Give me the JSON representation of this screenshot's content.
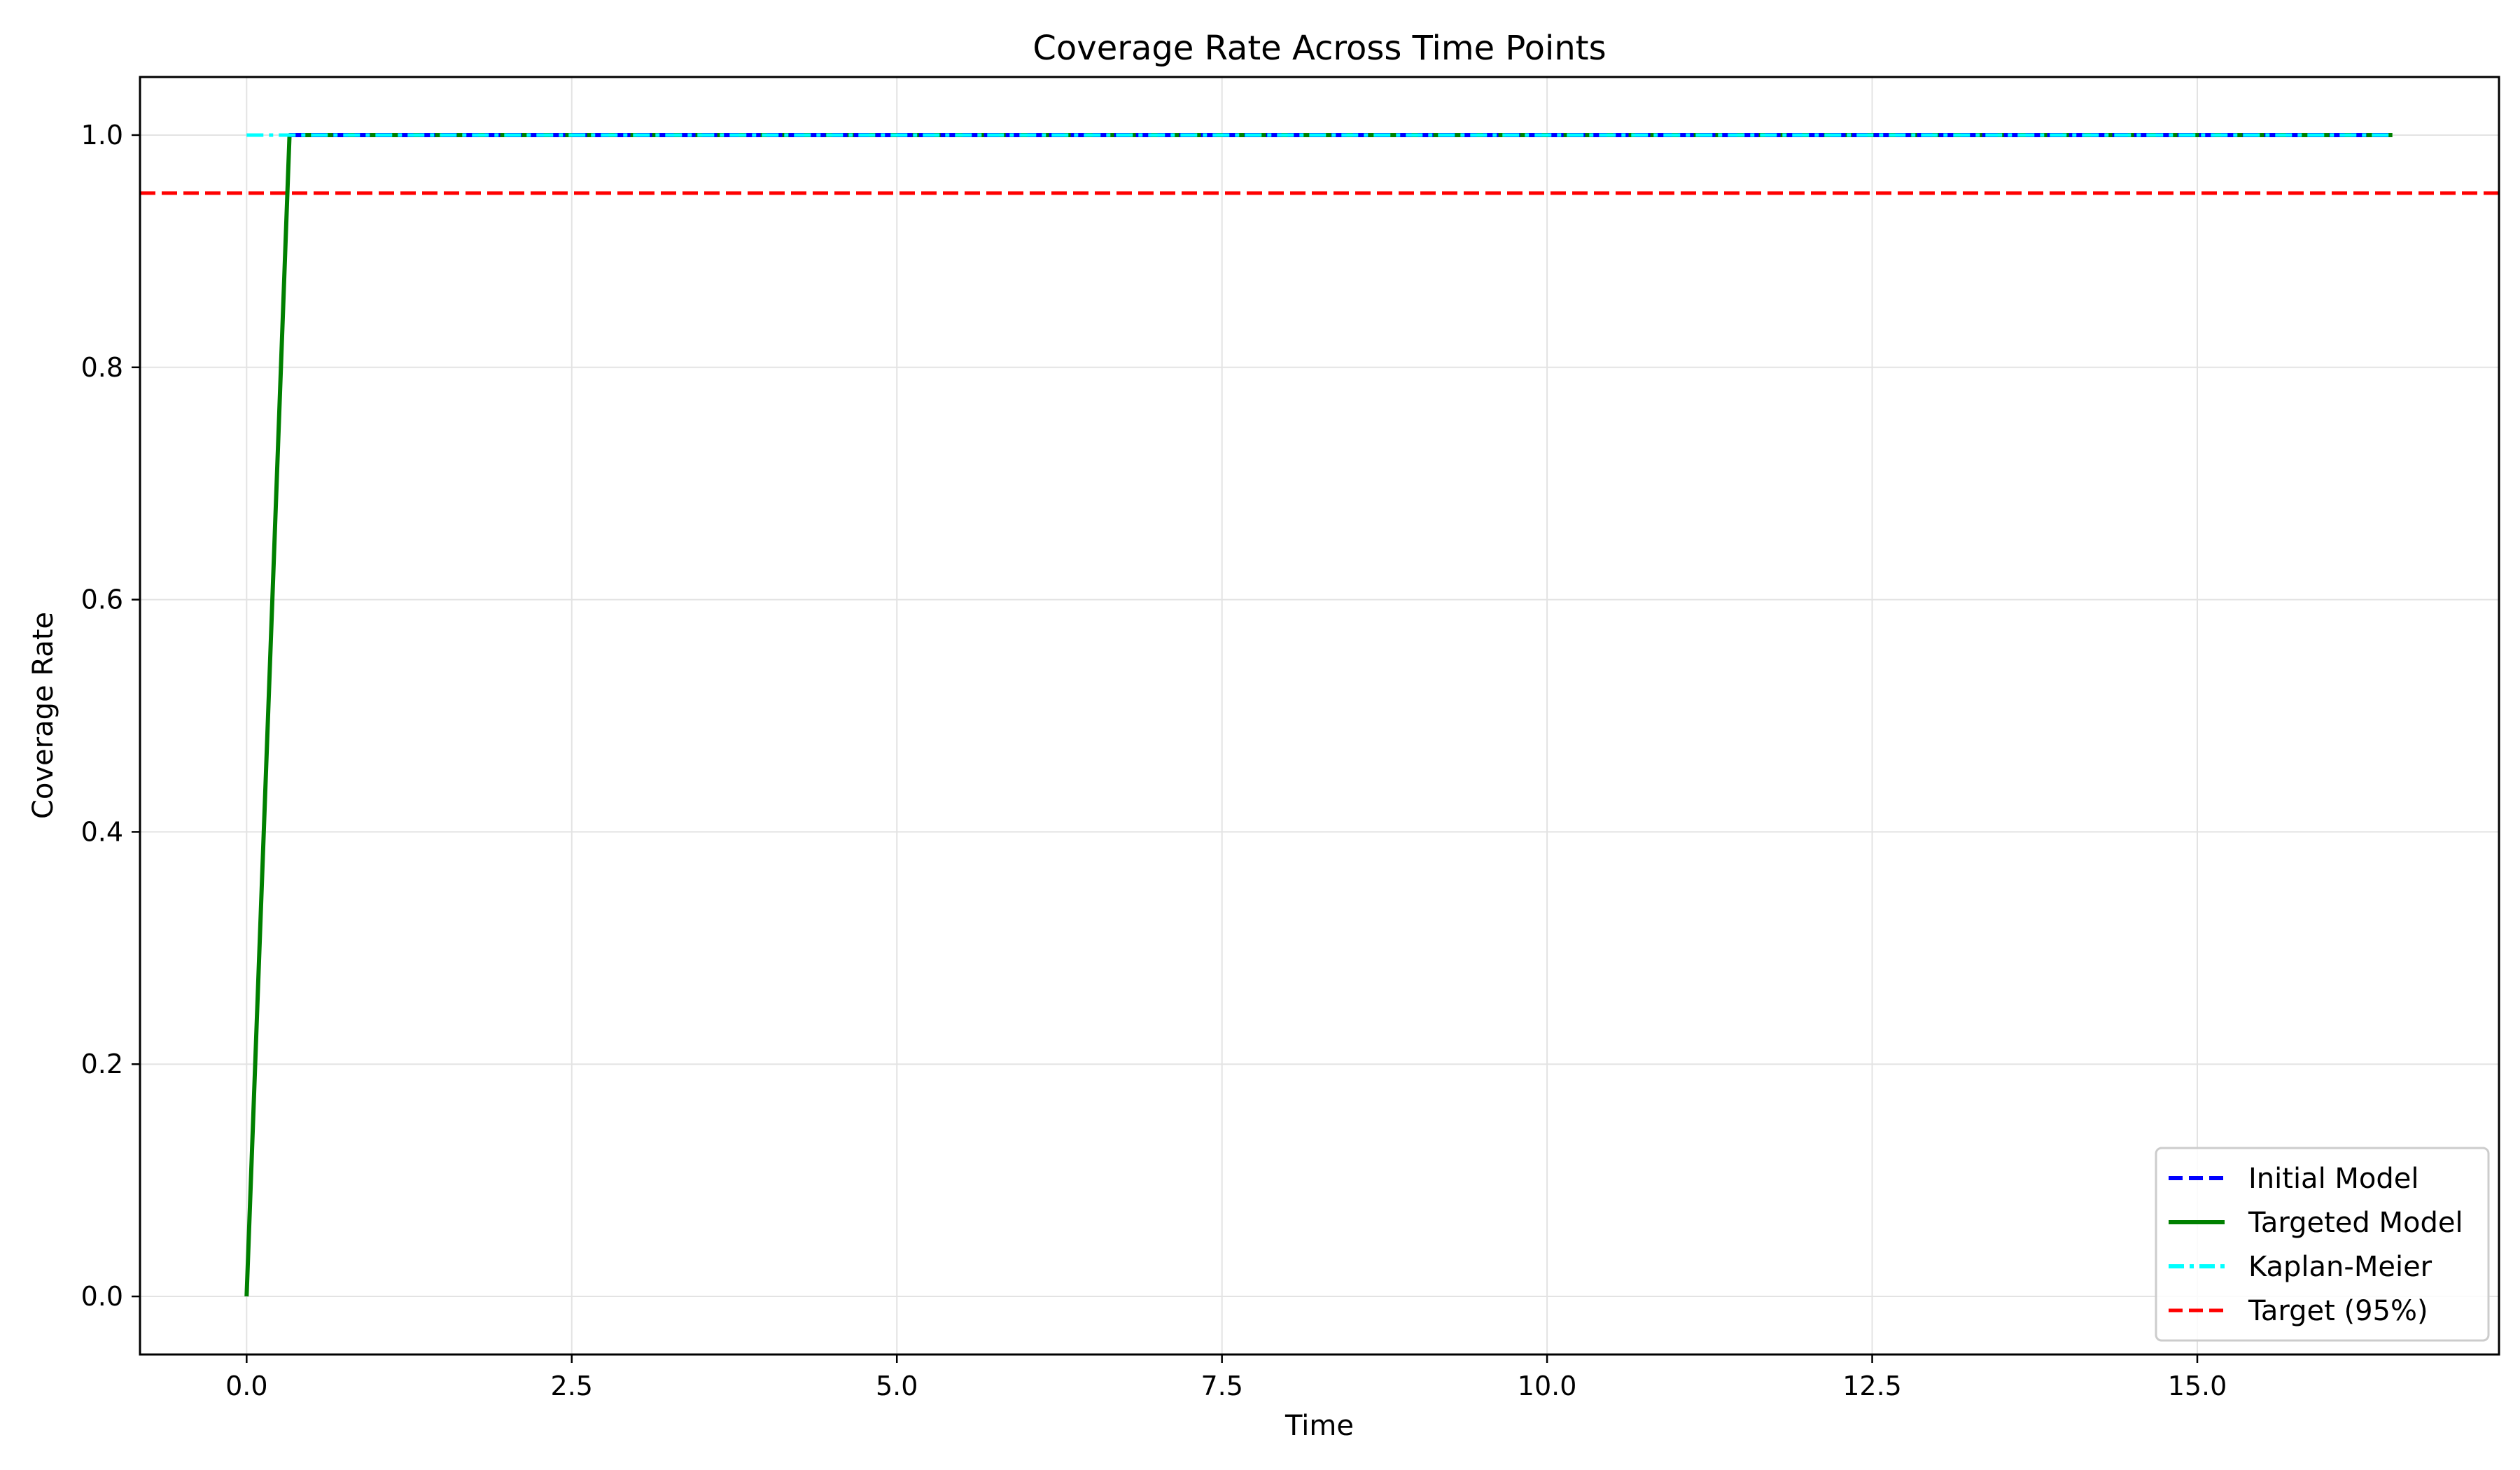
{
  "chart_data": {
    "type": "line",
    "title": "Coverage Rate Across Time Points",
    "xlabel": "Time",
    "ylabel": "Coverage Rate",
    "xlim": [
      -0.82,
      17.32
    ],
    "ylim": [
      -0.05,
      1.05
    ],
    "xticks": [
      0.0,
      2.5,
      5.0,
      7.5,
      10.0,
      12.5,
      15.0
    ],
    "xtick_labels": [
      "0.0",
      "2.5",
      "5.0",
      "7.5",
      "10.0",
      "12.5",
      "15.0"
    ],
    "yticks": [
      0.0,
      0.2,
      0.4,
      0.6,
      0.8,
      1.0
    ],
    "ytick_labels": [
      "0.0",
      "0.2",
      "0.4",
      "0.6",
      "0.8",
      "1.0"
    ],
    "grid": true,
    "legend_position": "lower-right",
    "series": [
      {
        "name": "Initial Model",
        "color": "#0000ff",
        "style": "dashed",
        "x": [
          0.33,
          16.5
        ],
        "y": [
          1.0,
          1.0
        ]
      },
      {
        "name": "Targeted Model",
        "color": "#008000",
        "style": "solid",
        "x": [
          0.0,
          0.33,
          16.5
        ],
        "y": [
          0.0,
          1.0,
          1.0
        ]
      },
      {
        "name": "Kaplan-Meier",
        "color": "#00ffff",
        "style": "dashdot",
        "x": [
          0.0,
          16.5
        ],
        "y": [
          1.0,
          1.0
        ]
      }
    ],
    "reference_line": {
      "name": "Target (95%)",
      "color": "#ff0000",
      "style": "dashed",
      "y": 0.95
    }
  }
}
